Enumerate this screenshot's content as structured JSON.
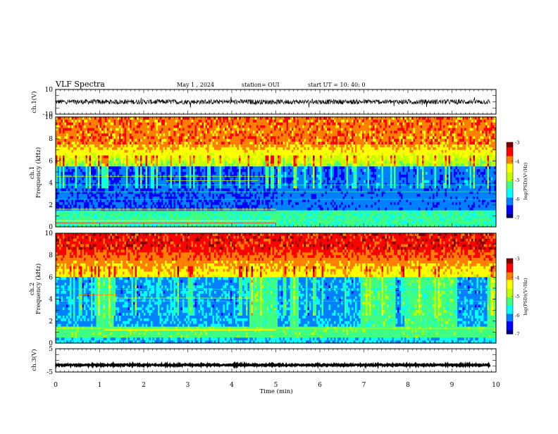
{
  "header": {
    "title": "VLF Spectra",
    "date": "May 1 , 2024",
    "station": "station= OUI",
    "start": "start UT = 10: 40: 0"
  },
  "chart_data": [
    {
      "id": "ch1v",
      "type": "line",
      "ylabel": "ch.1(V)",
      "ylim": [
        -10,
        10
      ],
      "yticks": [
        "10",
        "-10"
      ],
      "xlim": [
        0,
        10
      ],
      "signal_center": 0,
      "signal_amplitude": 2
    },
    {
      "id": "ch1spec",
      "type": "heatmap",
      "ylabel": "Frequency (kHz)",
      "ylabel2": "ch.1",
      "ylim": [
        0,
        10
      ],
      "yticks": [
        "0",
        "2",
        "4",
        "6",
        "8",
        "10"
      ],
      "xlim": [
        0,
        10
      ],
      "colorbar": {
        "label": "log(PSD)(V²/Hz)",
        "range": [
          -7,
          -3
        ],
        "ticks": [
          "-3",
          "-4",
          "-5",
          "-6",
          "-7"
        ]
      }
    },
    {
      "id": "ch2spec",
      "type": "heatmap",
      "ylabel": "Frequency (kHz)",
      "ylabel2": "ch.2",
      "ylim": [
        0,
        10
      ],
      "yticks": [
        "0",
        "2",
        "4",
        "6",
        "8",
        "10"
      ],
      "xlim": [
        0,
        10
      ],
      "colorbar": {
        "label": "log(PSD)(V²/Hz)",
        "range": [
          -7,
          -3
        ],
        "ticks": [
          "-3",
          "-4",
          "-5",
          "-6",
          "-7"
        ]
      }
    },
    {
      "id": "ch3v",
      "type": "line",
      "ylabel": "ch.3(V)",
      "ylim": [
        -5,
        5
      ],
      "yticks": [
        "5",
        "-5"
      ],
      "xlim": [
        0,
        10
      ],
      "signal_center": -2,
      "signal_amplitude": 0.3
    }
  ],
  "xaxis": {
    "label": "Time (min)",
    "ticks": [
      "0",
      "1",
      "2",
      "3",
      "4",
      "5",
      "6",
      "7",
      "8",
      "9",
      "10"
    ]
  },
  "colors": {
    "colormap": [
      "#00007a",
      "#0000ff",
      "#0080ff",
      "#00ffff",
      "#40ff80",
      "#c0ff00",
      "#ffff00",
      "#ff8000",
      "#ff0000",
      "#800000"
    ]
  }
}
